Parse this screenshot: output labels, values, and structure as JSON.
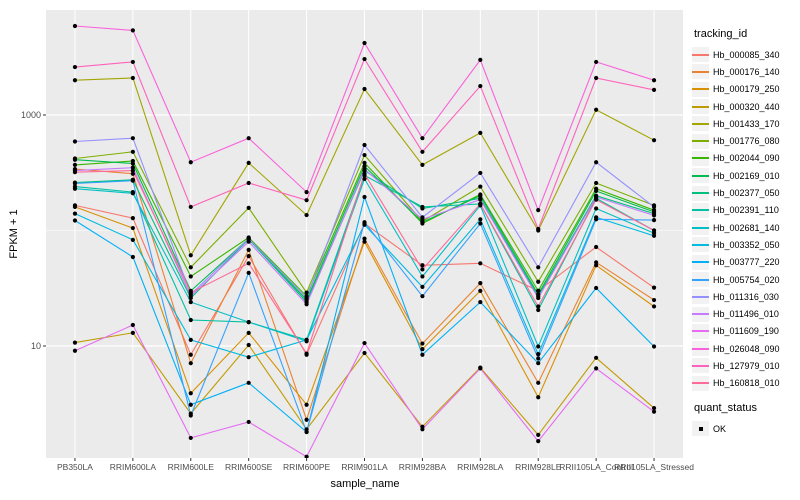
{
  "colors": {
    "panel_bg": "#EBEBEB",
    "grid": "#FFFFFF",
    "point": "#000000",
    "tick_text": "#4D4D4D",
    "axis_title_text": "#000000",
    "legend_key_bg": "#F2F2F2"
  },
  "axes": {
    "y_title": "FPKM + 1",
    "x_title": "sample_name",
    "y_ticks": [
      {
        "label": "1000",
        "value": 1000,
        "y": 115
      },
      {
        "label": "10",
        "value": 10,
        "y": 346
      }
    ],
    "y_minor_gridline_values": [
      100
    ],
    "log_scale": true
  },
  "legend": {
    "tracking_title": "tracking_id",
    "quant_title": "quant_status",
    "quant_items": [
      {
        "label": "OK"
      }
    ]
  },
  "chart_data": {
    "type": "line",
    "title": "",
    "xlabel": "sample_name",
    "ylabel": "FPKM + 1",
    "y_scale": "log10",
    "ylim": [
      1,
      8000
    ],
    "grid": true,
    "legend_position": "right",
    "categories": [
      "PB350LA",
      "RRIM600LA",
      "RRIM600LE",
      "RRIM600SE",
      "RRIM600PE",
      "RRIM901LA",
      "RRIM928BA",
      "RRIM928LA",
      "RRIM928LE",
      "RRII105LA_Control",
      "RRII105LA_Stressed"
    ],
    "series": [
      {
        "name": "Hb_000085_340",
        "color": "#F8766D",
        "values": [
          165,
          128,
          8.4,
          60,
          8.4,
          115,
          50,
          52,
          30,
          72,
          32
        ]
      },
      {
        "name": "Hb_000176_140",
        "color": "#EA8331",
        "values": [
          340,
          310,
          7.1,
          68,
          2.3,
          85,
          10.5,
          35,
          4.8,
          53,
          25
        ]
      },
      {
        "name": "Hb_000179_250",
        "color": "#D89000",
        "values": [
          160,
          105,
          3.9,
          13,
          3.1,
          80,
          9.4,
          30,
          3.6,
          50,
          22
        ]
      },
      {
        "name": "Hb_000320_440",
        "color": "#C09B00",
        "values": [
          10.7,
          13,
          2.6,
          10.2,
          1.9,
          8.7,
          2.0,
          6.5,
          1.7,
          7.9,
          2.9
        ]
      },
      {
        "name": "Hb_001433_170",
        "color": "#A3A500",
        "values": [
          2000,
          2090,
          61,
          385,
          136,
          1680,
          370,
          700,
          100,
          1110,
          605
        ]
      },
      {
        "name": "Hb_001776_080",
        "color": "#7CAE00",
        "values": [
          420,
          480,
          48,
          157,
          29,
          450,
          120,
          240,
          36,
          258,
          165
        ]
      },
      {
        "name": "Hb_002044_090",
        "color": "#39B600",
        "values": [
          370,
          400,
          40,
          87,
          27,
          385,
          115,
          205,
          30,
          230,
          150
        ]
      },
      {
        "name": "Hb_002169_010",
        "color": "#00BB4E",
        "values": [
          410,
          380,
          30,
          85,
          25,
          360,
          118,
          200,
          28,
          220,
          145
        ]
      },
      {
        "name": "Hb_002377_050",
        "color": "#00BF7D",
        "values": [
          260,
          275,
          26,
          84,
          24,
          330,
          155,
          190,
          27,
          200,
          140
        ]
      },
      {
        "name": "Hb_002391_110",
        "color": "#00C1A3",
        "values": [
          240,
          215,
          16.8,
          16.1,
          11.3,
          300,
          160,
          170,
          20.5,
          190,
          100
        ]
      },
      {
        "name": "Hb_002681_140",
        "color": "#00BFC4",
        "values": [
          230,
          210,
          24,
          16.1,
          11,
          280,
          40,
          165,
          9.9,
          155,
          95
        ]
      },
      {
        "name": "Hb_003352_050",
        "color": "#00BAE0",
        "values": [
          140,
          83,
          11.3,
          8,
          11.3,
          112,
          32.5,
          125,
          8.5,
          130,
          90
        ]
      },
      {
        "name": "Hb_003777_220",
        "color": "#00B0F6",
        "values": [
          122,
          59,
          3.1,
          4.8,
          1.8,
          195,
          8.4,
          24,
          7.1,
          31.8,
          9.9
        ]
      },
      {
        "name": "Hb_005754_020",
        "color": "#35A2FF",
        "values": [
          255,
          270,
          2.5,
          43,
          1.8,
          118,
          27,
          115,
          7.8,
          125,
          123
        ]
      },
      {
        "name": "Hb_011316_030",
        "color": "#9590FF",
        "values": [
          590,
          630,
          28,
          85,
          26,
          550,
          130,
          315,
          48,
          390,
          160
        ]
      },
      {
        "name": "Hb_011496_010",
        "color": "#C77CFF",
        "values": [
          330,
          350,
          27,
          80,
          23,
          340,
          125,
          185,
          26,
          195,
          135
        ]
      },
      {
        "name": "Hb_011609_190",
        "color": "#E76BF3",
        "values": [
          9.1,
          15.2,
          1.6,
          2.2,
          1.1,
          10.6,
          1.9,
          6.4,
          1.5,
          6.4,
          2.7
        ]
      },
      {
        "name": "Hb_026048_090",
        "color": "#FA62DB",
        "values": [
          5900,
          5400,
          390,
          630,
          215,
          4200,
          630,
          3000,
          150,
          2880,
          2000
        ]
      },
      {
        "name": "Hb_127979_010",
        "color": "#FF62BC",
        "values": [
          2600,
          2880,
          160,
          258,
          183,
          3050,
          480,
          1780,
          103,
          2090,
          1650
        ]
      },
      {
        "name": "Hb_160818_010",
        "color": "#FF6A98",
        "values": [
          320,
          330,
          29,
          52,
          8.6,
          310,
          46,
          170,
          22,
          185,
          100
        ]
      }
    ]
  }
}
